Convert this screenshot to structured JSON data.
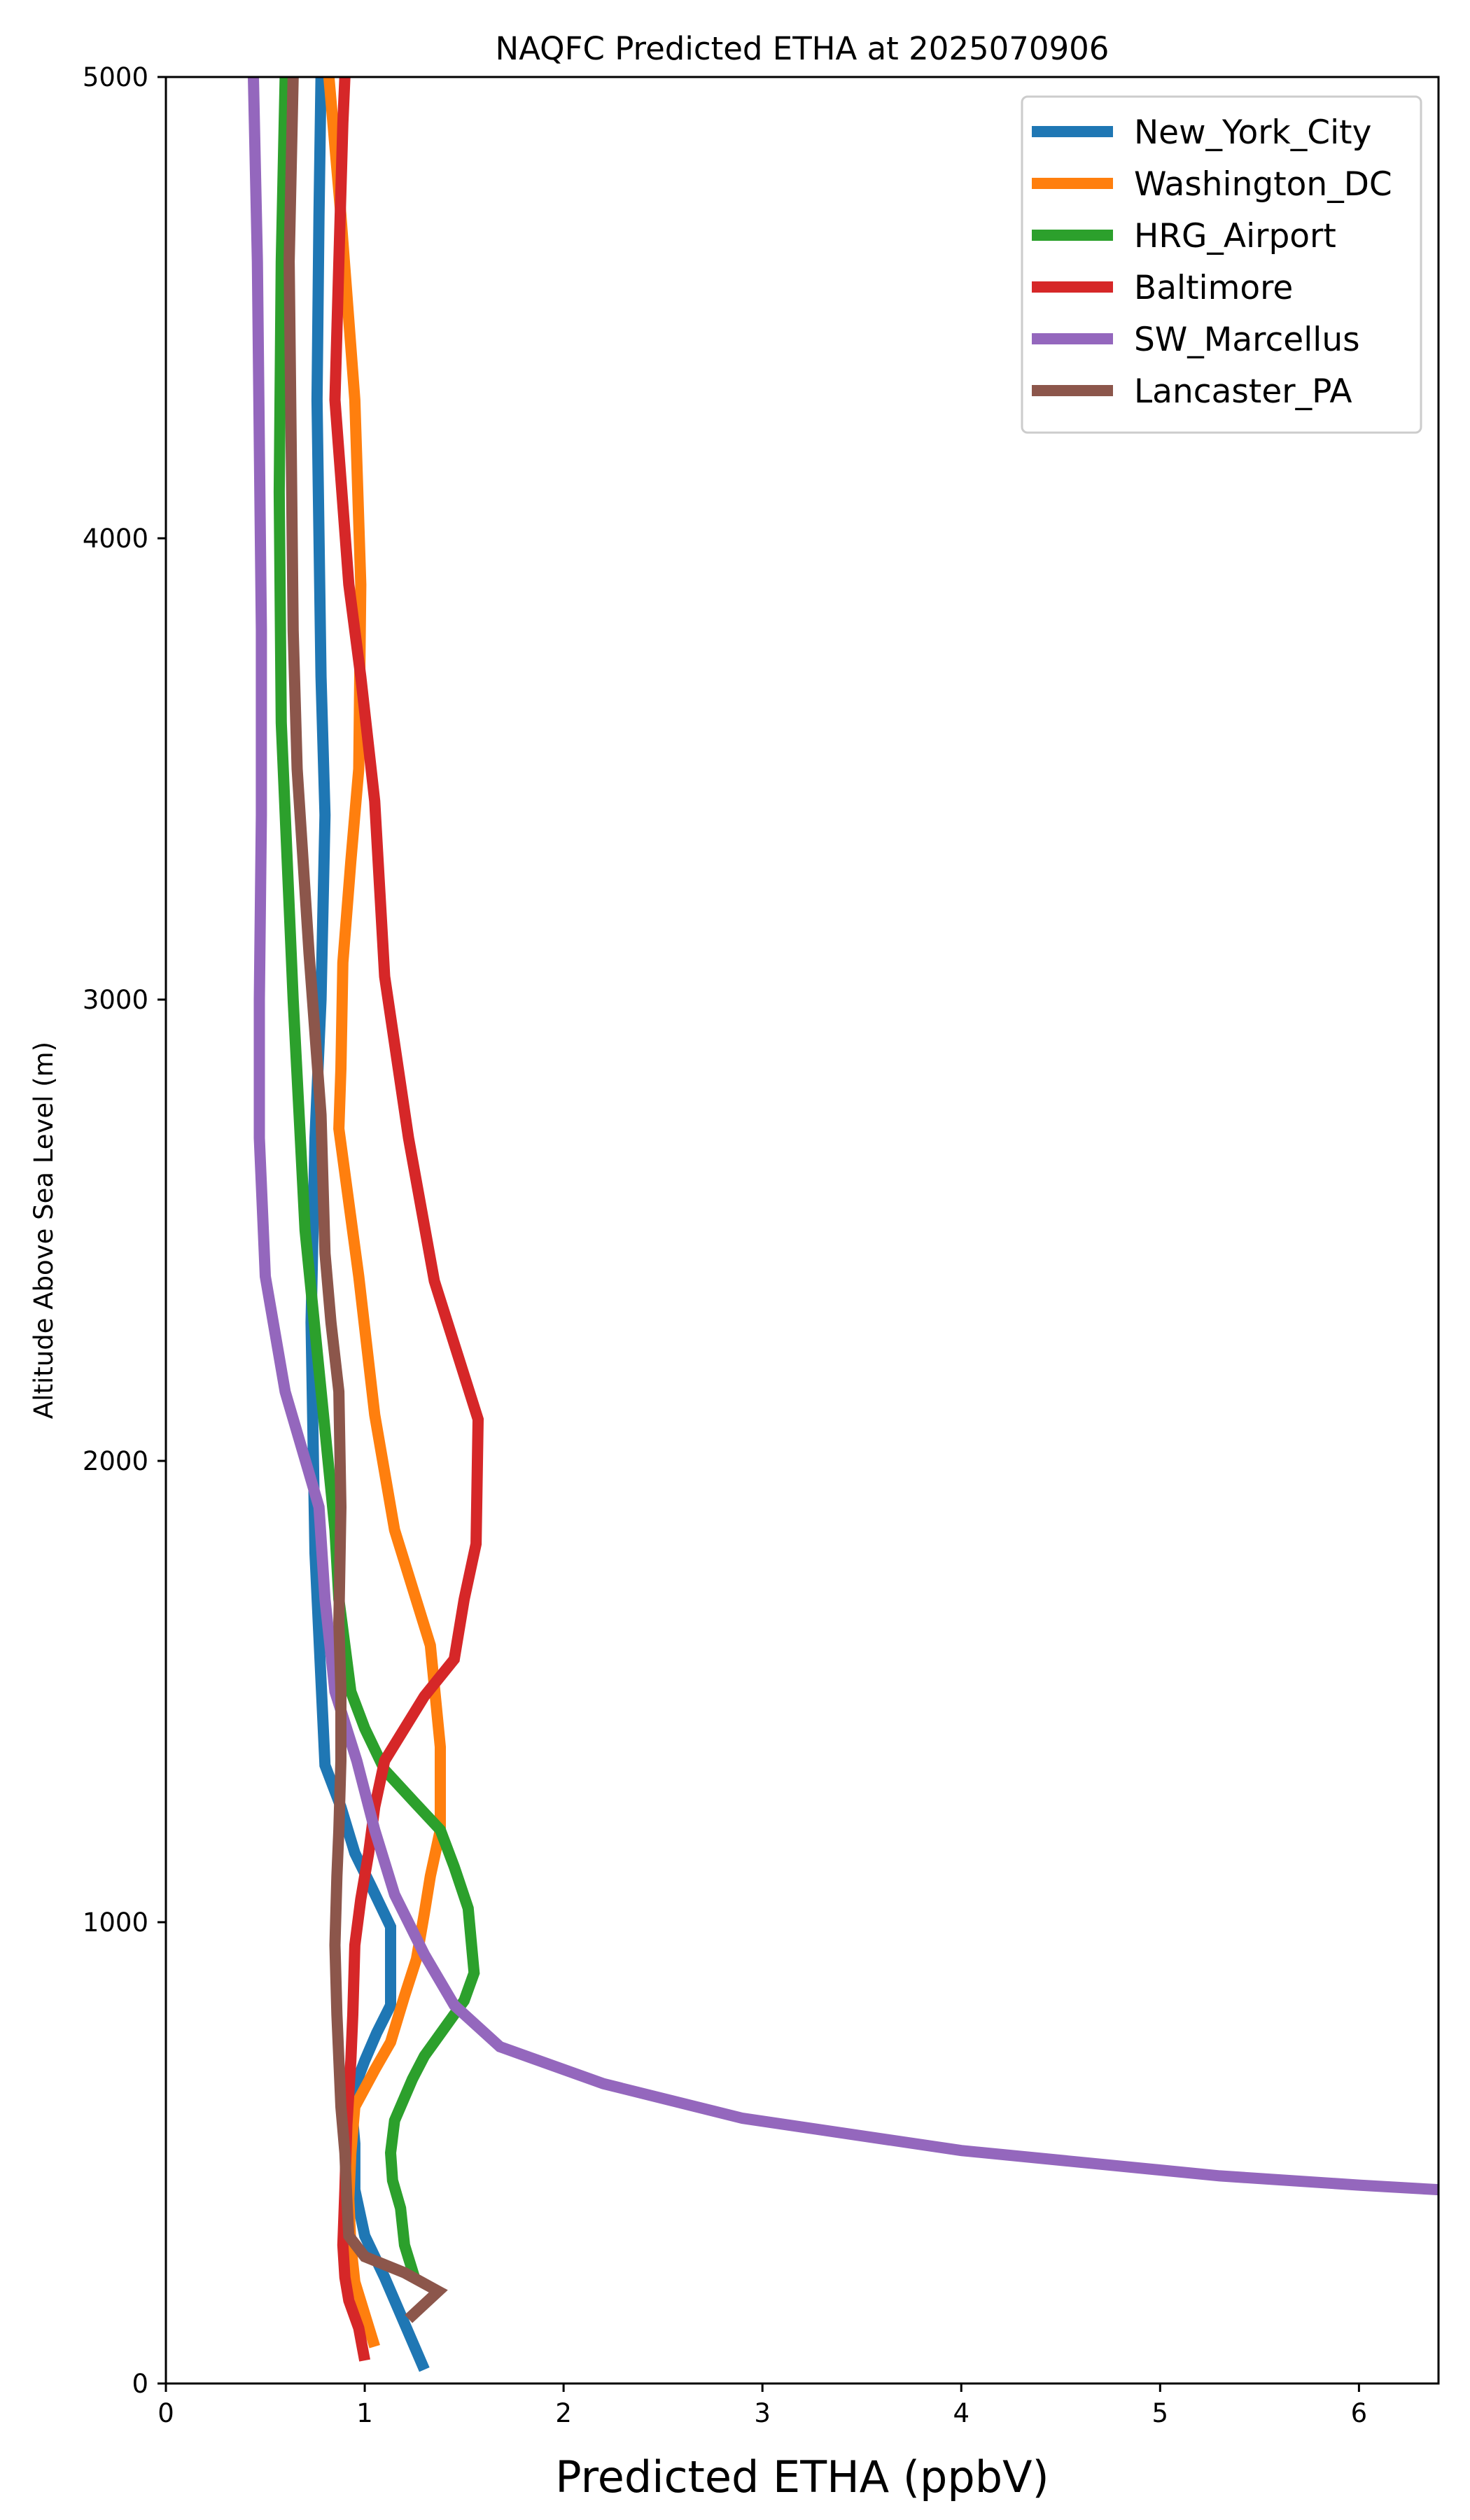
{
  "chart_data": {
    "type": "line",
    "title": "NAQFC Predicted ETHA at 2025070906",
    "xlabel": "Predicted ETHA (ppbV)",
    "ylabel": "Altitude Above Sea Level (m)",
    "xlim": [
      0,
      6.4
    ],
    "ylim": [
      0,
      5000
    ],
    "xticks": [
      0,
      1,
      2,
      3,
      4,
      5,
      6
    ],
    "yticks": [
      0,
      1000,
      2000,
      3000,
      4000,
      5000
    ],
    "grid": false,
    "legend_position": "top-right",
    "series": [
      {
        "name": "New_York_City",
        "color": "#1f77b4",
        "points": [
          [
            1.3,
            30
          ],
          [
            1.2,
            130
          ],
          [
            1.1,
            230
          ],
          [
            1.0,
            320
          ],
          [
            0.95,
            420
          ],
          [
            0.95,
            520
          ],
          [
            0.93,
            620
          ],
          [
            1.0,
            700
          ],
          [
            1.06,
            760
          ],
          [
            1.13,
            820
          ],
          [
            1.13,
            990
          ],
          [
            1.03,
            1080
          ],
          [
            0.95,
            1150
          ],
          [
            0.88,
            1250
          ],
          [
            0.8,
            1340
          ],
          [
            0.75,
            1800
          ],
          [
            0.73,
            2300
          ],
          [
            0.75,
            2700
          ],
          [
            0.78,
            3000
          ],
          [
            0.8,
            3400
          ],
          [
            0.78,
            3700
          ],
          [
            0.76,
            4300
          ],
          [
            0.77,
            4700
          ],
          [
            0.78,
            5000
          ]
        ]
      },
      {
        "name": "Washington_DC",
        "color": "#ff7f0e",
        "points": [
          [
            1.05,
            80
          ],
          [
            1.0,
            150
          ],
          [
            0.95,
            220
          ],
          [
            0.93,
            300
          ],
          [
            0.92,
            400
          ],
          [
            0.93,
            500
          ],
          [
            0.95,
            600
          ],
          [
            1.05,
            680
          ],
          [
            1.13,
            740
          ],
          [
            1.2,
            840
          ],
          [
            1.26,
            920
          ],
          [
            1.3,
            1020
          ],
          [
            1.33,
            1100
          ],
          [
            1.38,
            1200
          ],
          [
            1.38,
            1380
          ],
          [
            1.33,
            1600
          ],
          [
            1.15,
            1850
          ],
          [
            1.05,
            2100
          ],
          [
            0.97,
            2400
          ],
          [
            0.87,
            2720
          ],
          [
            0.88,
            2850
          ],
          [
            0.89,
            3080
          ],
          [
            0.93,
            3300
          ],
          [
            0.97,
            3500
          ],
          [
            0.98,
            3900
          ],
          [
            0.95,
            4300
          ],
          [
            0.88,
            4700
          ],
          [
            0.82,
            5000
          ]
        ]
      },
      {
        "name": "HRG_Airport",
        "color": "#2ca02c",
        "points": [
          [
            1.25,
            230
          ],
          [
            1.2,
            300
          ],
          [
            1.18,
            380
          ],
          [
            1.14,
            440
          ],
          [
            1.13,
            500
          ],
          [
            1.15,
            570
          ],
          [
            1.24,
            660
          ],
          [
            1.3,
            710
          ],
          [
            1.4,
            770
          ],
          [
            1.5,
            830
          ],
          [
            1.55,
            890
          ],
          [
            1.52,
            1030
          ],
          [
            1.45,
            1120
          ],
          [
            1.38,
            1200
          ],
          [
            1.25,
            1260
          ],
          [
            1.1,
            1330
          ],
          [
            1.0,
            1420
          ],
          [
            0.93,
            1500
          ],
          [
            0.9,
            1600
          ],
          [
            0.87,
            1700
          ],
          [
            0.85,
            1850
          ],
          [
            0.7,
            2500
          ],
          [
            0.64,
            3000
          ],
          [
            0.58,
            3600
          ],
          [
            0.57,
            4100
          ],
          [
            0.58,
            4600
          ],
          [
            0.6,
            5000
          ]
        ]
      },
      {
        "name": "Baltimore",
        "color": "#d62728",
        "points": [
          [
            1.0,
            50
          ],
          [
            0.97,
            120
          ],
          [
            0.92,
            180
          ],
          [
            0.9,
            230
          ],
          [
            0.89,
            300
          ],
          [
            0.9,
            420
          ],
          [
            0.91,
            560
          ],
          [
            0.93,
            700
          ],
          [
            0.94,
            800
          ],
          [
            0.95,
            950
          ],
          [
            0.98,
            1050
          ],
          [
            1.02,
            1150
          ],
          [
            1.05,
            1250
          ],
          [
            1.1,
            1350
          ],
          [
            1.2,
            1420
          ],
          [
            1.3,
            1490
          ],
          [
            1.45,
            1570
          ],
          [
            1.5,
            1700
          ],
          [
            1.56,
            1820
          ],
          [
            1.57,
            2090
          ],
          [
            1.35,
            2390
          ],
          [
            1.22,
            2700
          ],
          [
            1.1,
            3050
          ],
          [
            1.05,
            3430
          ],
          [
            0.98,
            3700
          ],
          [
            0.92,
            3900
          ],
          [
            0.85,
            4300
          ],
          [
            0.87,
            4600
          ],
          [
            0.89,
            4900
          ],
          [
            0.9,
            5000
          ]
        ]
      },
      {
        "name": "SW_Marcellus",
        "color": "#9467bd",
        "points": [
          [
            6.4,
            420
          ],
          [
            6.0,
            430
          ],
          [
            5.3,
            450
          ],
          [
            4.0,
            505
          ],
          [
            2.9,
            575
          ],
          [
            2.2,
            650
          ],
          [
            1.68,
            730
          ],
          [
            1.45,
            820
          ],
          [
            1.3,
            930
          ],
          [
            1.15,
            1060
          ],
          [
            1.05,
            1200
          ],
          [
            0.96,
            1350
          ],
          [
            0.85,
            1500
          ],
          [
            0.8,
            1700
          ],
          [
            0.77,
            1900
          ],
          [
            0.6,
            2150
          ],
          [
            0.5,
            2400
          ],
          [
            0.47,
            2700
          ],
          [
            0.47,
            3000
          ],
          [
            0.48,
            3400
          ],
          [
            0.48,
            3800
          ],
          [
            0.47,
            4200
          ],
          [
            0.46,
            4600
          ],
          [
            0.44,
            5000
          ]
        ]
      },
      {
        "name": "Lancaster_PA",
        "color": "#8c564b",
        "points": [
          [
            1.22,
            140
          ],
          [
            1.37,
            200
          ],
          [
            1.2,
            240
          ],
          [
            1.0,
            275
          ],
          [
            0.92,
            320
          ],
          [
            0.91,
            400
          ],
          [
            0.9,
            500
          ],
          [
            0.88,
            600
          ],
          [
            0.86,
            800
          ],
          [
            0.85,
            950
          ],
          [
            0.86,
            1100
          ],
          [
            0.87,
            1200
          ],
          [
            0.88,
            1350
          ],
          [
            0.88,
            1500
          ],
          [
            0.87,
            1650
          ],
          [
            0.88,
            1900
          ],
          [
            0.87,
            2150
          ],
          [
            0.83,
            2300
          ],
          [
            0.8,
            2450
          ],
          [
            0.78,
            2750
          ],
          [
            0.72,
            3100
          ],
          [
            0.66,
            3500
          ],
          [
            0.64,
            3800
          ],
          [
            0.63,
            4200
          ],
          [
            0.62,
            4600
          ],
          [
            0.64,
            5000
          ]
        ]
      }
    ]
  }
}
